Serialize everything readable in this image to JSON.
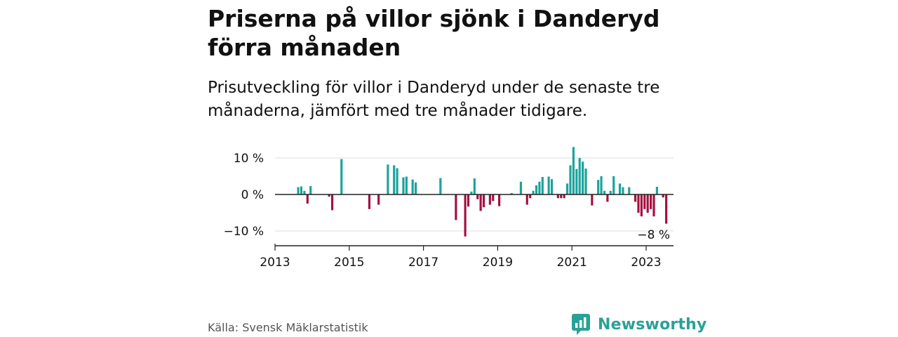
{
  "title": "Priserna på villor sjönk i Danderyd förra månaden",
  "subtitle": "Prisutveckling för villor i Danderyd under de senaste tre månaderna, jämfört med tre månader tidigare.",
  "source": "Källa: Svensk Mäklarstatistik",
  "brand": "Newsworthy",
  "colors": {
    "positive": "#1ba39c",
    "negative": "#a3103f",
    "brand": "#2aa198"
  },
  "chart_data": {
    "type": "bar",
    "title": "Priserna på villor sjönk i Danderyd förra månaden",
    "xlabel": "",
    "ylabel": "",
    "ylim": [
      -13,
      16
    ],
    "x_ticks": [
      2013,
      2015,
      2017,
      2019,
      2021,
      2023
    ],
    "x_tick_labels": [
      "2013",
      "2015",
      "2017",
      "2019",
      "2021",
      "2023"
    ],
    "y_ticks": [
      10,
      0,
      -10
    ],
    "y_tick_labels": [
      "10 %",
      "0 %",
      "−10 %"
    ],
    "last_value_label": "−8 %",
    "start": "2013-01",
    "series": [
      {
        "name": "Prisutveckling",
        "values": [
          0,
          0,
          0,
          0,
          0,
          0,
          0,
          2,
          2.2,
          1,
          -2.5,
          2.3,
          0,
          0,
          0,
          0,
          0,
          -0.6,
          -4.3,
          0,
          0,
          9.7,
          0,
          0,
          0,
          0,
          0,
          0,
          0,
          0,
          -4,
          0,
          0,
          -2.8,
          0,
          0,
          8.2,
          0,
          8,
          7.2,
          0,
          4.7,
          4.9,
          0,
          4.1,
          3.3,
          0,
          0,
          0,
          0,
          0,
          0,
          0,
          4.5,
          0,
          0,
          0,
          0,
          -7,
          0,
          0,
          -11.5,
          -3.3,
          0.8,
          4.4,
          -1.3,
          -4.5,
          -3.5,
          0,
          -2.8,
          -1.8,
          0,
          -3.2,
          0,
          0,
          0,
          0.4,
          0,
          0,
          3.5,
          0,
          -2.8,
          -1,
          1,
          2.5,
          3.5,
          4.8,
          0,
          4.9,
          4.2,
          0,
          -1,
          -1,
          -1,
          3,
          8,
          13,
          7,
          10,
          9,
          7.1,
          0,
          -3,
          0,
          4,
          5,
          1,
          -2,
          1,
          5,
          0,
          3,
          2,
          0,
          2,
          0,
          -2,
          -5,
          -6,
          -4,
          -5,
          -4,
          -6,
          2.1,
          0,
          -0.8,
          -8
        ]
      }
    ]
  }
}
